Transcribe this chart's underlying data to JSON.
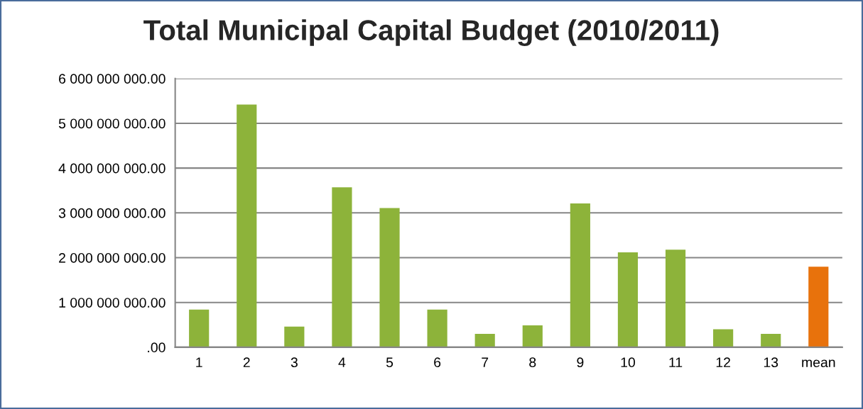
{
  "chart_data": {
    "type": "bar",
    "title": "Total Municipal Capital Budget (2010/2011)",
    "categories": [
      "1",
      "2",
      "3",
      "4",
      "5",
      "6",
      "7",
      "8",
      "9",
      "10",
      "11",
      "12",
      "13",
      "mean"
    ],
    "values": [
      840000000,
      5420000000,
      460000000,
      3570000000,
      3110000000,
      840000000,
      300000000,
      490000000,
      3210000000,
      2120000000,
      2180000000,
      400000000,
      300000000,
      1800000000
    ],
    "colors": [
      "#8db33a",
      "#8db33a",
      "#8db33a",
      "#8db33a",
      "#8db33a",
      "#8db33a",
      "#8db33a",
      "#8db33a",
      "#8db33a",
      "#8db33a",
      "#8db33a",
      "#8db33a",
      "#8db33a",
      "#e8720c"
    ],
    "ylim": [
      0,
      6000000000
    ],
    "yticks": [
      {
        "value": 0,
        "label": ".00"
      },
      {
        "value": 1000000000,
        "label": "1 000 000 000.00"
      },
      {
        "value": 2000000000,
        "label": "2 000 000 000.00"
      },
      {
        "value": 3000000000,
        "label": "3 000 000 000.00"
      },
      {
        "value": 4000000000,
        "label": "4 000 000 000.00"
      },
      {
        "value": 5000000000,
        "label": "5 000 000 000.00"
      },
      {
        "value": 6000000000,
        "label": "6 000 000 000.00"
      }
    ],
    "grid": "y",
    "legend": false
  }
}
